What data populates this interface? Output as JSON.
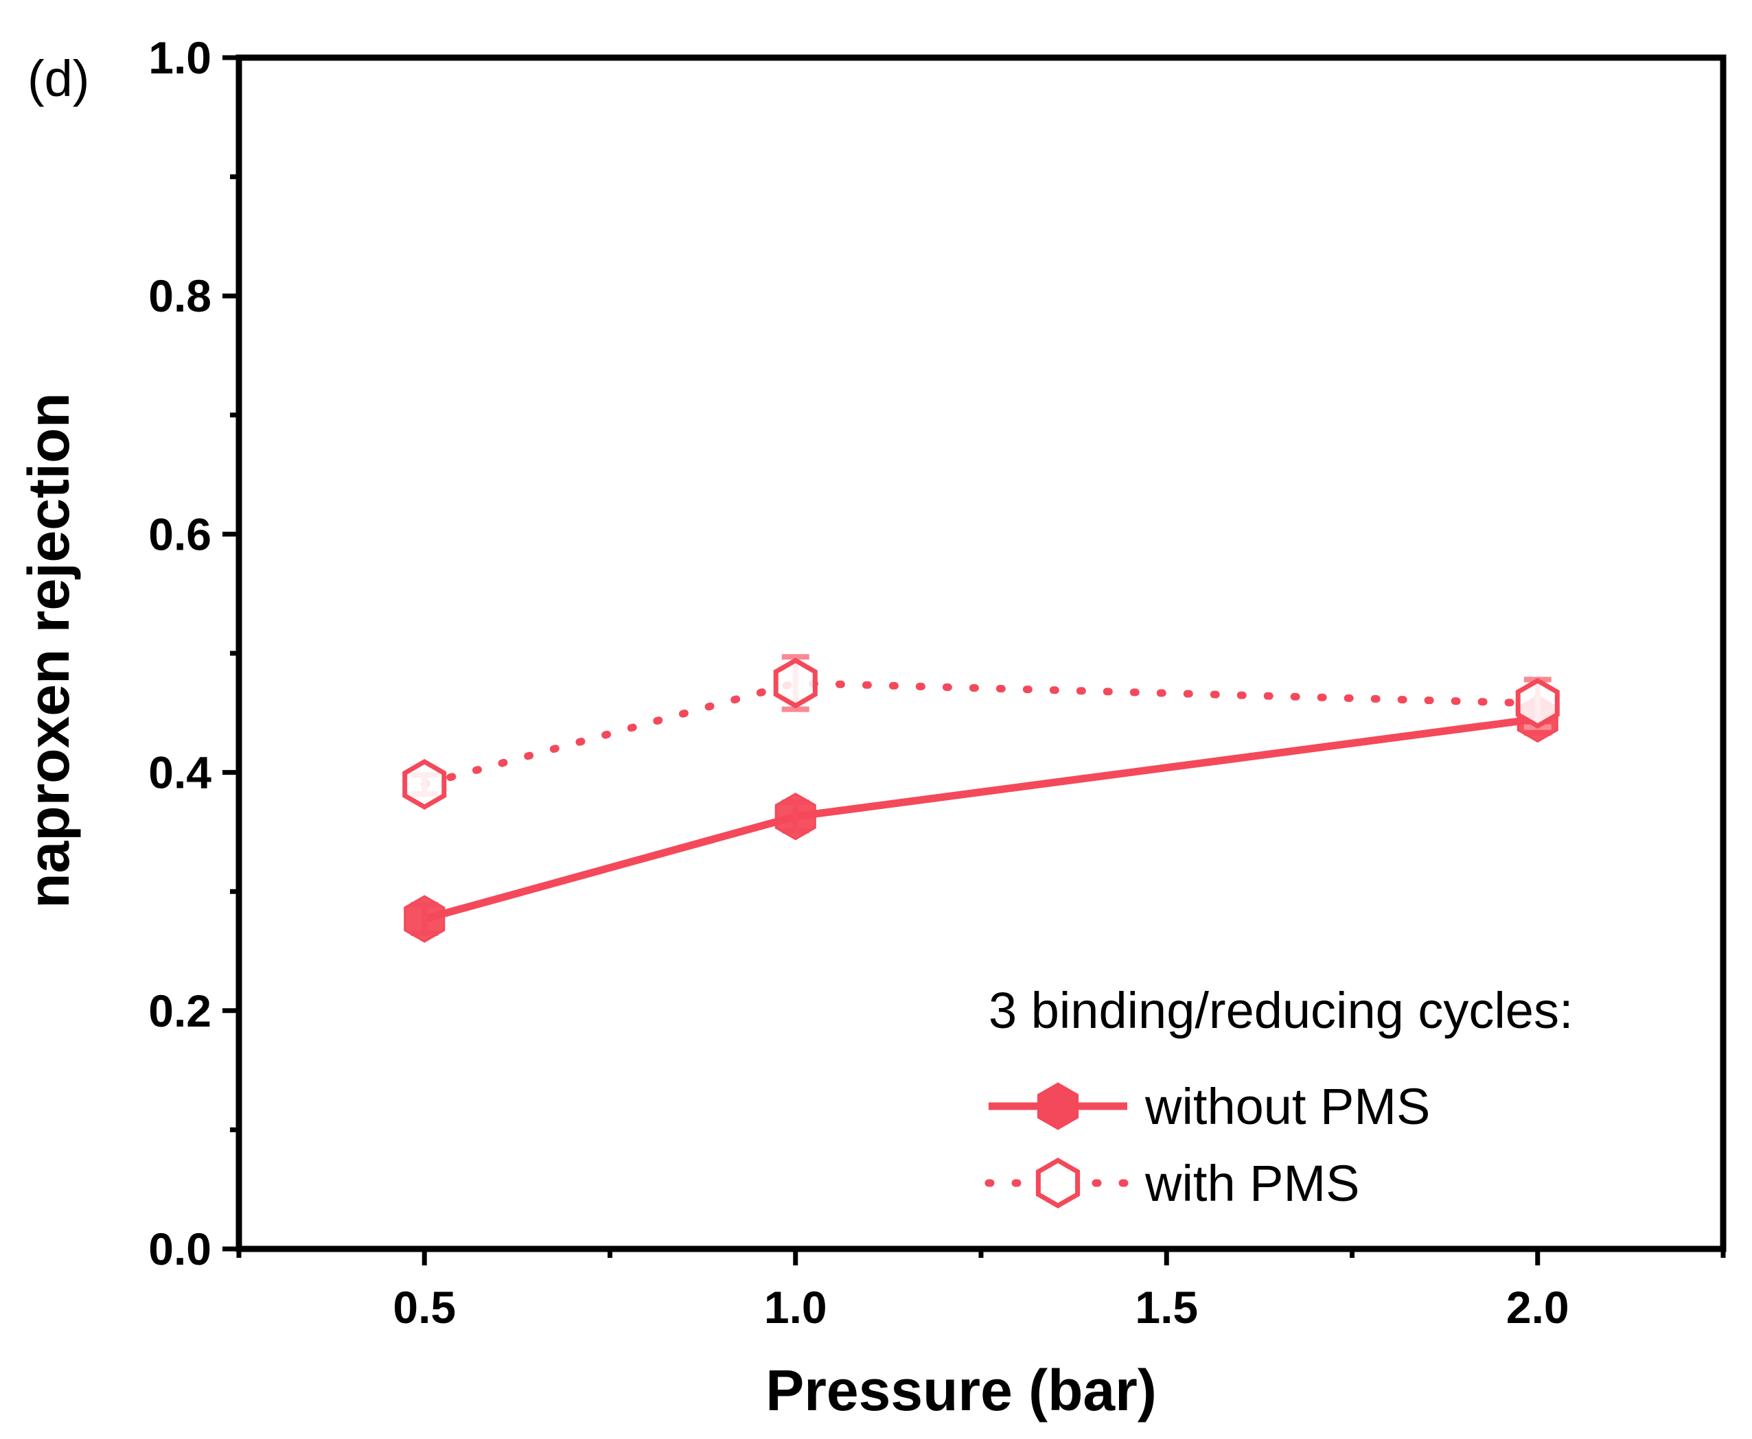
{
  "panel_label": "(d)",
  "chart_data": {
    "type": "line",
    "title": "",
    "xlabel": "Pressure (bar)",
    "ylabel": "naproxen rejection",
    "xlim": [
      0.25,
      2.25
    ],
    "ylim": [
      0.0,
      1.0
    ],
    "x_ticks": [
      0.5,
      1.0,
      1.5,
      2.0
    ],
    "x_tick_labels": [
      "0.5",
      "1.0",
      "1.5",
      "2.0"
    ],
    "y_ticks": [
      0.0,
      0.2,
      0.4,
      0.6,
      0.8,
      1.0
    ],
    "y_tick_labels": [
      "0.0",
      "0.2",
      "0.4",
      "0.6",
      "0.8",
      "1.0"
    ],
    "grid": false,
    "legend_title": "3 binding/reducing cycles:",
    "legend_position": "bottom-right",
    "color": "#f4495a",
    "series": [
      {
        "name": "without PMS",
        "marker": "hexagon-filled",
        "line_style": "solid",
        "x": [
          0.5,
          1.0,
          2.0
        ],
        "values": [
          0.277,
          0.363,
          0.445
        ],
        "errors": [
          0.012,
          0.012,
          0.012
        ]
      },
      {
        "name": "with PMS",
        "marker": "hexagon-open",
        "line_style": "dotted",
        "x": [
          0.5,
          1.0,
          2.0
        ],
        "values": [
          0.39,
          0.475,
          0.458
        ],
        "errors": [
          0.008,
          0.022,
          0.02
        ]
      }
    ]
  }
}
